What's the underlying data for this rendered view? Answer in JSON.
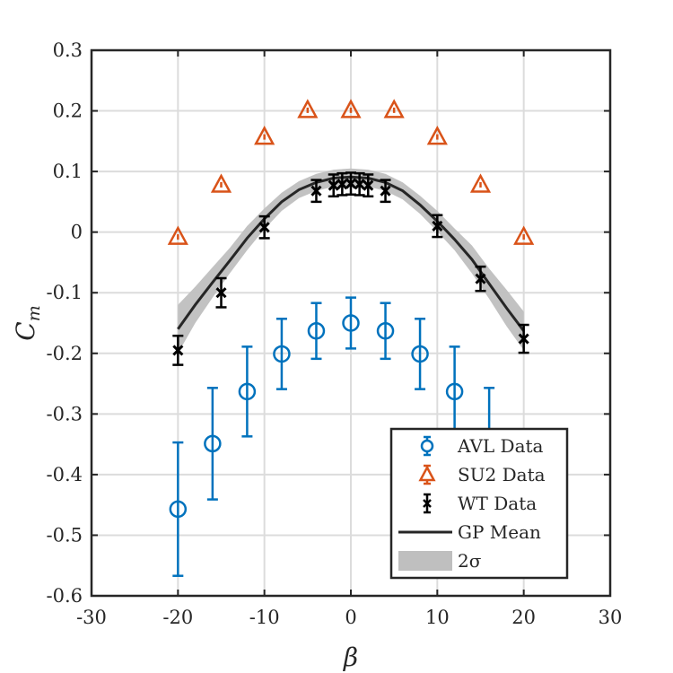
{
  "chart_data": {
    "type": "scatter",
    "xlabel": "β",
    "ylabel_main": "C",
    "ylabel_sub": "m",
    "xlim": [
      -30,
      30
    ],
    "ylim": [
      -0.6,
      0.3
    ],
    "xticks": [
      -30,
      -20,
      -10,
      0,
      10,
      20,
      30
    ],
    "xtick_labels": [
      "-30",
      "-20",
      "-10",
      "0",
      "10",
      "20",
      "30"
    ],
    "yticks": [
      0.3,
      0.2,
      0.1,
      0,
      -0.1,
      -0.2,
      -0.3,
      -0.4,
      -0.5,
      -0.6
    ],
    "ytick_labels": [
      "0.3",
      "0.2",
      "0.1",
      "0",
      "-0.1",
      "-0.2",
      "-0.3",
      "-0.4",
      "-0.5",
      "-0.6"
    ],
    "grid": true,
    "legend_position": "bottom-right",
    "colors": {
      "avl": "#0072BD",
      "su2": "#D95319",
      "wt": "#000000",
      "gp_mean": "#262626",
      "band": "#BFBFBF"
    },
    "series": [
      {
        "name": "AVL Data",
        "marker": "circle",
        "x": [
          -20,
          -16,
          -12,
          -8,
          -4,
          0,
          4,
          8,
          12,
          16
        ],
        "y": [
          -0.457,
          -0.349,
          -0.263,
          -0.201,
          -0.163,
          -0.15,
          -0.163,
          -0.201,
          -0.263,
          -0.349
        ],
        "err": [
          0.11,
          0.092,
          0.074,
          0.058,
          0.046,
          0.042,
          0.046,
          0.058,
          0.074,
          0.092
        ]
      },
      {
        "name": "SU2 Data",
        "marker": "triangle",
        "x": [
          -20,
          -15,
          -10,
          -5,
          0,
          5,
          10,
          15,
          20
        ],
        "y": [
          -0.008,
          0.078,
          0.157,
          0.201,
          0.201,
          0.201,
          0.157,
          0.078,
          -0.008
        ]
      },
      {
        "name": "WT Data",
        "marker": "x",
        "x": [
          -20,
          -15,
          -10,
          -4,
          -2,
          -1,
          0,
          1,
          2,
          4,
          10,
          15,
          20
        ],
        "y": [
          -0.195,
          -0.1,
          0.008,
          0.068,
          0.077,
          0.079,
          0.08,
          0.079,
          0.077,
          0.068,
          0.01,
          -0.077,
          -0.176
        ],
        "err": [
          0.024,
          0.024,
          0.018,
          0.018,
          0.018,
          0.018,
          0.018,
          0.018,
          0.018,
          0.018,
          0.018,
          0.02,
          0.023
        ]
      },
      {
        "name": "GP Mean",
        "marker": "line",
        "x": [
          -20,
          -18,
          -16,
          -14,
          -12,
          -10,
          -8,
          -6,
          -4,
          -2,
          0,
          2,
          4,
          6,
          8,
          10,
          12,
          14,
          16,
          18,
          20
        ],
        "y": [
          -0.16,
          -0.12,
          -0.083,
          -0.047,
          -0.01,
          0.022,
          0.05,
          0.07,
          0.082,
          0.089,
          0.091,
          0.089,
          0.082,
          0.068,
          0.045,
          0.018,
          -0.012,
          -0.045,
          -0.085,
          -0.125,
          -0.163
        ]
      },
      {
        "name": "2σ",
        "marker": "band",
        "x": [
          -20,
          -18,
          -16,
          -14,
          -12,
          -10,
          -8,
          -6,
          -4,
          -2,
          0,
          2,
          4,
          6,
          8,
          10,
          12,
          14,
          16,
          18,
          20
        ],
        "lower": [
          -0.2,
          -0.15,
          -0.108,
          -0.068,
          -0.03,
          0.005,
          0.035,
          0.056,
          0.068,
          0.075,
          0.077,
          0.075,
          0.068,
          0.054,
          0.03,
          0.001,
          -0.03,
          -0.068,
          -0.11,
          -0.155,
          -0.195
        ],
        "upper": [
          -0.12,
          -0.09,
          -0.058,
          -0.026,
          0.01,
          0.039,
          0.065,
          0.084,
          0.096,
          0.103,
          0.105,
          0.103,
          0.096,
          0.082,
          0.06,
          0.035,
          0.006,
          -0.022,
          -0.06,
          -0.095,
          -0.131
        ]
      }
    ]
  }
}
